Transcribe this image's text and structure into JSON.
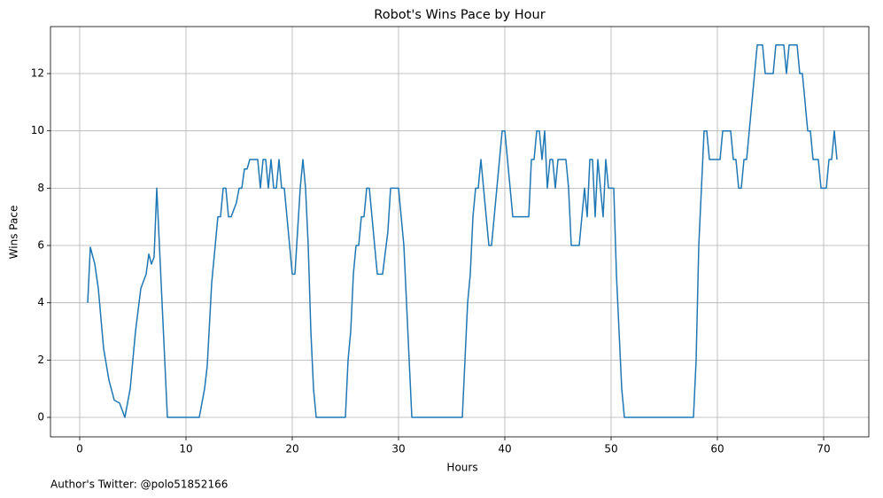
{
  "chart_data": {
    "type": "line",
    "title": "Robot's Wins Pace by Hour",
    "x_label": "Hours",
    "y_label": "Wins Pace",
    "annotation": "Author's Twitter: @polo51852166",
    "x": [
      0.75,
      1.0,
      1.42,
      1.75,
      2.25,
      2.75,
      3.25,
      3.75,
      4.25,
      4.75,
      5.25,
      5.75,
      6.25,
      6.5,
      6.75,
      7.0,
      7.25,
      7.5,
      8.0,
      8.25,
      11.25,
      11.75,
      12.0,
      12.42,
      12.75,
      13.0,
      13.25,
      13.5,
      13.75,
      14.0,
      14.25,
      14.75,
      15.0,
      15.25,
      15.5,
      15.75,
      16.0,
      16.75,
      17.0,
      17.25,
      17.5,
      17.75,
      18.0,
      18.25,
      18.5,
      18.75,
      19.0,
      19.25,
      20.0,
      20.25,
      20.75,
      21.0,
      21.25,
      21.5,
      21.75,
      22.0,
      22.25,
      25.0,
      25.25,
      25.5,
      25.75,
      26.0,
      26.25,
      26.5,
      26.75,
      27.0,
      27.25,
      27.75,
      28.0,
      28.5,
      29.0,
      29.25,
      30.0,
      30.5,
      31.0,
      31.25,
      36.0,
      36.25,
      36.5,
      36.75,
      37.0,
      37.25,
      37.5,
      37.75,
      38.0,
      38.25,
      38.5,
      38.75,
      39.25,
      39.75,
      40.0,
      40.5,
      40.75,
      42.25,
      42.5,
      42.75,
      43.0,
      43.25,
      43.5,
      43.75,
      44.0,
      44.25,
      44.5,
      44.75,
      45.0,
      45.75,
      46.0,
      46.25,
      47.0,
      47.5,
      47.75,
      48.0,
      48.25,
      48.5,
      48.75,
      49.0,
      49.25,
      49.5,
      49.75,
      50.25,
      50.5,
      50.75,
      51.0,
      51.25,
      57.75,
      58.0,
      58.25,
      58.5,
      58.75,
      59.0,
      59.25,
      60.25,
      60.5,
      61.25,
      61.5,
      61.75,
      62.0,
      62.25,
      62.5,
      62.75,
      63.5,
      63.75,
      64.25,
      64.5,
      65.25,
      65.5,
      66.25,
      66.5,
      66.75,
      67.5,
      67.75,
      68.0,
      68.25,
      68.5,
      68.75,
      69.0,
      69.5,
      69.75,
      70.25,
      70.5,
      70.75,
      71.0,
      71.25
    ],
    "series": [
      {
        "name": "Wins Pace",
        "color": "#1f77b4",
        "values": [
          4,
          5.94,
          5.35,
          4.5,
          2.4,
          1.3,
          0.6,
          0.5,
          0,
          1,
          3,
          4.5,
          5,
          5.7,
          5.35,
          5.6,
          8,
          6,
          2,
          0,
          0,
          1,
          1.8,
          4.7,
          6,
          7,
          7,
          8,
          8,
          7,
          7,
          7.5,
          8,
          8,
          8.67,
          8.67,
          9,
          9,
          8,
          9,
          9,
          8,
          9,
          8,
          8,
          9,
          8,
          8,
          5,
          5,
          8,
          9,
          8,
          6,
          3,
          1,
          0,
          0,
          2,
          3,
          5,
          6,
          6,
          7,
          7,
          8,
          8,
          6,
          5,
          5,
          6.5,
          8,
          8,
          6,
          2,
          0,
          0,
          2,
          4,
          5,
          7,
          8,
          8,
          9,
          8,
          7,
          6,
          6,
          8,
          10,
          10,
          8,
          7,
          7,
          9,
          9,
          10,
          10,
          9,
          10,
          8,
          9,
          9,
          8,
          9,
          9,
          8,
          6,
          6,
          8,
          7,
          9,
          9,
          7,
          9,
          8,
          7,
          9,
          8,
          8,
          5,
          3,
          1,
          0,
          0,
          2,
          6,
          8,
          10,
          10,
          9,
          9,
          10,
          10,
          9,
          9,
          8,
          8,
          9,
          9,
          12,
          13,
          13,
          12,
          12,
          13,
          13,
          12,
          13,
          13,
          12,
          12,
          11,
          10,
          10,
          9,
          9,
          8,
          8,
          9,
          9,
          10,
          9
        ]
      }
    ],
    "xlim": [
      -2.75,
      74.25
    ],
    "ylim": [
      -0.68,
      13.64
    ],
    "xticks": [
      0,
      10,
      20,
      30,
      40,
      50,
      60,
      70
    ],
    "yticks": [
      0,
      2,
      4,
      6,
      8,
      10,
      12
    ],
    "grid": true
  }
}
